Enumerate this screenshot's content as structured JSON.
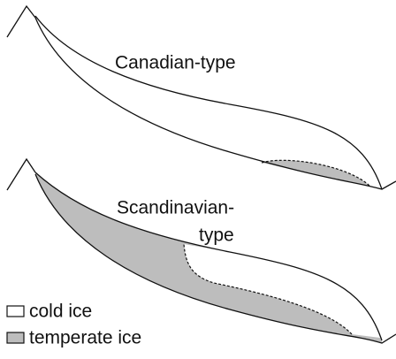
{
  "diagrams": [
    {
      "label": [
        "Canadian-type"
      ]
    },
    {
      "label": [
        "Scandinavian-",
        "type"
      ]
    }
  ],
  "legend": [
    {
      "label": "cold ice"
    },
    {
      "label": "temperate ice"
    }
  ]
}
